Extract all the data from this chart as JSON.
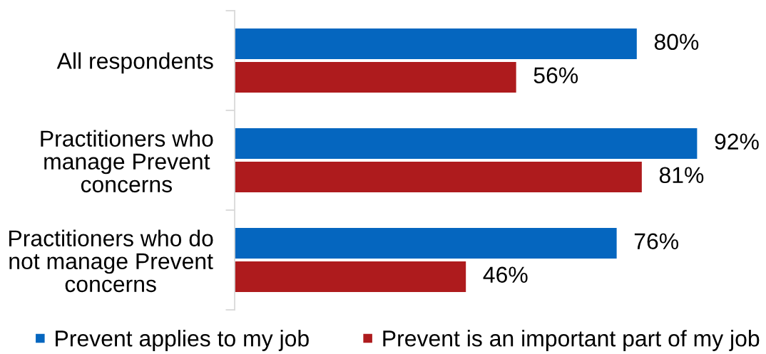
{
  "chart_data": {
    "type": "bar",
    "orientation": "horizontal",
    "categories": [
      "All respondents",
      "Practitioners who\nmanage Prevent\nconcerns",
      "Practitioners who do\nnot manage Prevent\nconcerns"
    ],
    "series": [
      {
        "name": "Prevent applies to my job",
        "color": "#0566bf",
        "values": [
          80,
          92,
          76
        ],
        "value_labels": [
          "80%",
          "92%",
          "76%"
        ]
      },
      {
        "name": "Prevent is an important part of my job",
        "color": "#ae1b1d",
        "values": [
          56,
          81,
          46
        ],
        "value_labels": [
          "56%",
          "81%",
          "46%"
        ]
      }
    ],
    "legend": "bottom",
    "grid": false,
    "tick_labels": "y"
  }
}
